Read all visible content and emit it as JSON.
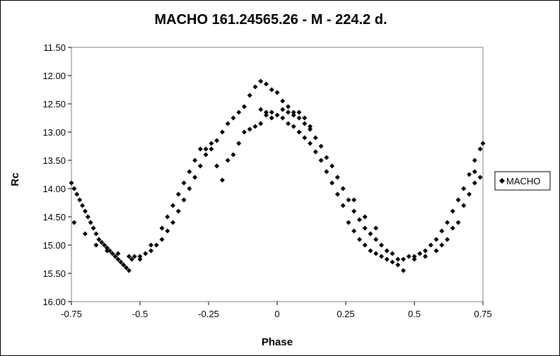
{
  "chart_data": {
    "type": "scatter",
    "title": "MACHO 161.24565.26  - M - 224.2 d.",
    "xlabel": "Phase",
    "ylabel": "Rc",
    "xlim": [
      -0.75,
      0.75
    ],
    "ylim": [
      11.5,
      16.0
    ],
    "y_inverted": true,
    "grid": false,
    "x_ticks": [
      -0.75,
      -0.5,
      -0.25,
      0,
      0.25,
      0.5,
      0.75
    ],
    "x_tick_labels": [
      "-0.75",
      "-0.5",
      "-0.25",
      "0",
      "0.25",
      "0.5",
      "0.75"
    ],
    "y_ticks": [
      11.5,
      12.0,
      12.5,
      13.0,
      13.5,
      14.0,
      14.5,
      15.0,
      15.5,
      16.0
    ],
    "y_tick_labels": [
      "11.50",
      "12.00",
      "12.50",
      "13.00",
      "13.50",
      "14.00",
      "14.50",
      "15.00",
      "15.50",
      "16.00"
    ],
    "legend_position": "right",
    "series": [
      {
        "name": "MACHO",
        "marker": "diamond",
        "color": "#000000",
        "points": [
          [
            -0.75,
            13.9
          ],
          [
            -0.74,
            14.0
          ],
          [
            -0.73,
            14.1
          ],
          [
            -0.72,
            14.2
          ],
          [
            -0.71,
            14.3
          ],
          [
            -0.7,
            14.4
          ],
          [
            -0.69,
            14.5
          ],
          [
            -0.68,
            14.6
          ],
          [
            -0.67,
            14.7
          ],
          [
            -0.66,
            14.8
          ],
          [
            -0.65,
            14.9
          ],
          [
            -0.64,
            14.95
          ],
          [
            -0.63,
            15.0
          ],
          [
            -0.62,
            15.05
          ],
          [
            -0.61,
            15.1
          ],
          [
            -0.6,
            15.15
          ],
          [
            -0.59,
            15.2
          ],
          [
            -0.58,
            15.25
          ],
          [
            -0.57,
            15.3
          ],
          [
            -0.56,
            15.35
          ],
          [
            -0.55,
            15.4
          ],
          [
            -0.54,
            15.45
          ],
          [
            -0.53,
            15.25
          ],
          [
            -0.52,
            15.2
          ],
          [
            -0.5,
            15.2
          ],
          [
            -0.48,
            15.15
          ],
          [
            -0.46,
            15.1
          ],
          [
            -0.44,
            15.0
          ],
          [
            -0.42,
            14.9
          ],
          [
            -0.4,
            14.75
          ],
          [
            -0.38,
            14.6
          ],
          [
            -0.36,
            14.4
          ],
          [
            -0.34,
            14.2
          ],
          [
            -0.32,
            14.0
          ],
          [
            -0.3,
            13.8
          ],
          [
            -0.28,
            13.6
          ],
          [
            -0.26,
            13.4
          ],
          [
            -0.24,
            13.3
          ],
          [
            -0.22,
            13.15
          ],
          [
            -0.2,
            13.0
          ],
          [
            -0.18,
            12.85
          ],
          [
            -0.16,
            12.75
          ],
          [
            -0.14,
            12.65
          ],
          [
            -0.12,
            12.55
          ],
          [
            -0.1,
            12.35
          ],
          [
            -0.08,
            12.2
          ],
          [
            -0.06,
            12.1
          ],
          [
            -0.04,
            12.15
          ],
          [
            -0.02,
            12.25
          ],
          [
            0.0,
            12.3
          ],
          [
            0.02,
            12.45
          ],
          [
            0.04,
            12.55
          ],
          [
            0.06,
            12.65
          ],
          [
            0.08,
            12.75
          ],
          [
            0.1,
            12.85
          ],
          [
            0.12,
            12.95
          ],
          [
            0.14,
            13.1
          ],
          [
            0.16,
            13.25
          ],
          [
            0.18,
            13.45
          ],
          [
            0.2,
            13.6
          ],
          [
            0.22,
            13.8
          ],
          [
            0.24,
            14.0
          ],
          [
            0.26,
            14.2
          ],
          [
            0.28,
            14.4
          ],
          [
            0.3,
            14.55
          ],
          [
            0.32,
            14.7
          ],
          [
            0.34,
            14.8
          ],
          [
            0.36,
            14.9
          ],
          [
            0.38,
            15.0
          ],
          [
            0.4,
            15.1
          ],
          [
            0.42,
            15.15
          ],
          [
            0.44,
            15.25
          ],
          [
            0.46,
            15.45
          ],
          [
            0.48,
            15.2
          ],
          [
            0.5,
            15.2
          ],
          [
            0.52,
            15.15
          ],
          [
            0.54,
            15.1
          ],
          [
            0.56,
            15.0
          ],
          [
            0.58,
            14.9
          ],
          [
            0.6,
            14.75
          ],
          [
            0.62,
            14.6
          ],
          [
            0.64,
            14.4
          ],
          [
            0.66,
            14.2
          ],
          [
            0.68,
            14.0
          ],
          [
            0.7,
            13.75
          ],
          [
            0.72,
            13.5
          ],
          [
            0.74,
            13.3
          ],
          [
            0.75,
            13.2
          ],
          [
            -0.74,
            14.6
          ],
          [
            -0.7,
            14.8
          ],
          [
            -0.66,
            15.0
          ],
          [
            -0.62,
            15.1
          ],
          [
            -0.58,
            15.15
          ],
          [
            -0.54,
            15.2
          ],
          [
            -0.5,
            15.25
          ],
          [
            -0.46,
            15.0
          ],
          [
            -0.42,
            14.7
          ],
          [
            -0.38,
            14.3
          ],
          [
            -0.34,
            13.9
          ],
          [
            -0.3,
            13.5
          ],
          [
            -0.26,
            13.3
          ],
          [
            -0.22,
            13.6
          ],
          [
            -0.2,
            13.85
          ],
          [
            -0.18,
            13.5
          ],
          [
            -0.16,
            13.4
          ],
          [
            -0.14,
            13.2
          ],
          [
            -0.12,
            13.0
          ],
          [
            -0.1,
            12.95
          ],
          [
            -0.08,
            12.9
          ],
          [
            -0.06,
            12.85
          ],
          [
            -0.04,
            12.7
          ],
          [
            -0.02,
            12.75
          ],
          [
            0.0,
            12.7
          ],
          [
            0.02,
            12.75
          ],
          [
            0.04,
            12.85
          ],
          [
            0.06,
            12.9
          ],
          [
            0.08,
            13.0
          ],
          [
            0.1,
            13.1
          ],
          [
            0.12,
            13.2
          ],
          [
            0.14,
            13.35
          ],
          [
            0.16,
            13.5
          ],
          [
            0.18,
            13.7
          ],
          [
            0.2,
            13.9
          ],
          [
            0.22,
            14.1
          ],
          [
            0.24,
            14.3
          ],
          [
            0.26,
            14.6
          ],
          [
            0.28,
            14.75
          ],
          [
            0.3,
            14.9
          ],
          [
            0.32,
            15.0
          ],
          [
            0.34,
            15.1
          ],
          [
            0.36,
            15.15
          ],
          [
            0.38,
            15.2
          ],
          [
            0.4,
            15.25
          ],
          [
            0.42,
            15.3
          ],
          [
            0.44,
            15.35
          ],
          [
            0.46,
            15.25
          ],
          [
            0.5,
            15.25
          ],
          [
            0.54,
            15.2
          ],
          [
            0.58,
            15.1
          ],
          [
            0.62,
            14.9
          ],
          [
            0.66,
            14.6
          ],
          [
            0.7,
            14.1
          ],
          [
            0.72,
            13.9
          ],
          [
            0.74,
            13.8
          ],
          [
            -0.06,
            12.6
          ],
          [
            -0.04,
            12.65
          ],
          [
            -0.02,
            12.65
          ],
          [
            0.02,
            12.6
          ],
          [
            0.04,
            12.65
          ],
          [
            0.06,
            12.7
          ],
          [
            0.08,
            12.65
          ],
          [
            0.1,
            12.75
          ],
          [
            0.12,
            12.9
          ],
          [
            -0.28,
            13.3
          ],
          [
            -0.24,
            13.2
          ],
          [
            -0.32,
            13.7
          ],
          [
            -0.36,
            14.1
          ],
          [
            -0.4,
            14.5
          ],
          [
            0.28,
            14.2
          ],
          [
            0.32,
            14.5
          ],
          [
            0.36,
            14.7
          ],
          [
            0.6,
            15.0
          ],
          [
            0.64,
            14.7
          ],
          [
            0.68,
            14.3
          ],
          [
            0.72,
            13.7
          ]
        ]
      }
    ]
  }
}
